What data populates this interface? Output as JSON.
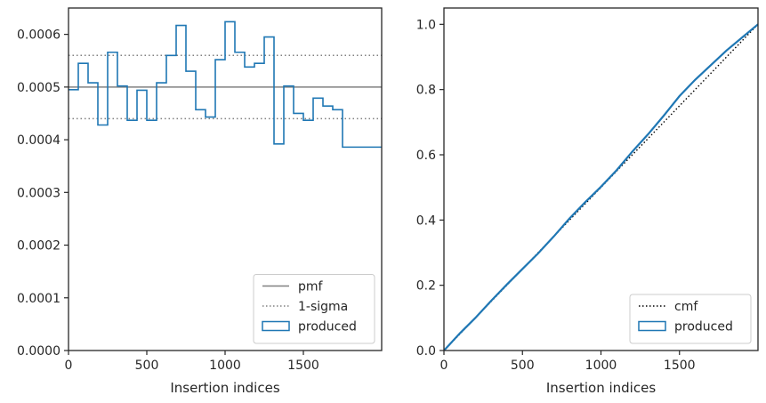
{
  "chart_data": [
    {
      "type": "line",
      "xlabel": "Insertion indices",
      "ylabel": "",
      "xlim": [
        0,
        2000
      ],
      "ylim": [
        0,
        0.00065
      ],
      "x_ticks": [
        {
          "value": 0,
          "label": "0"
        },
        {
          "value": 500,
          "label": "500"
        },
        {
          "value": 1000,
          "label": "1000"
        },
        {
          "value": 1500,
          "label": "1500"
        }
      ],
      "y_ticks": [
        {
          "value": 0,
          "label": "0.0000"
        },
        {
          "value": 0.0001,
          "label": "0.0001"
        },
        {
          "value": 0.0002,
          "label": "0.0002"
        },
        {
          "value": 0.0003,
          "label": "0.0003"
        },
        {
          "value": 0.0004,
          "label": "0.0004"
        },
        {
          "value": 0.0005,
          "label": "0.0005"
        },
        {
          "value": 0.0006,
          "label": "0.0006"
        }
      ],
      "pmf": 0.0005,
      "sigma_bounds": [
        0.00044,
        0.00056
      ],
      "histogram": {
        "name": "produced",
        "bin_edges": [
          0,
          62.5,
          125,
          187.5,
          250,
          312.5,
          375,
          437.5,
          500,
          562.5,
          625,
          687.5,
          750,
          812.5,
          875,
          937.5,
          1000,
          1062.5,
          1125,
          1187.5,
          1250,
          1312.5,
          1375,
          1437.5,
          1500,
          1562.5,
          1625,
          1687.5,
          1750,
          1812.5,
          1875,
          1937.5,
          2000
        ],
        "values": [
          0.000495,
          0.000545,
          0.000508,
          0.000428,
          0.000566,
          0.000502,
          0.000437,
          0.000494,
          0.000437,
          0.000508,
          0.00056,
          0.000617,
          0.00053,
          0.000457,
          0.000443,
          0.000552,
          0.000624,
          0.000566,
          0.000538,
          0.000545,
          0.000595,
          0.000392,
          0.000502,
          0.00045,
          0.000437,
          0.000479,
          0.000464,
          0.000457,
          0.000386,
          0.000386,
          0.000386,
          0.000386
        ]
      },
      "legend": {
        "position": "lower right",
        "entries": [
          {
            "label": "pmf",
            "style": "solid",
            "color": "#808080"
          },
          {
            "label": "1-sigma",
            "style": "dotted",
            "color": "#808080"
          },
          {
            "label": "produced",
            "style": "step",
            "color": "#1f77b4"
          }
        ]
      },
      "grid": false
    },
    {
      "type": "line",
      "xlabel": "Insertion indices",
      "ylabel": "",
      "xlim": [
        0,
        2000
      ],
      "ylim": [
        0,
        1.05
      ],
      "x_ticks": [
        {
          "value": 0,
          "label": "0"
        },
        {
          "value": 500,
          "label": "500"
        },
        {
          "value": 1000,
          "label": "1000"
        },
        {
          "value": 1500,
          "label": "1500"
        }
      ],
      "y_ticks": [
        {
          "value": 0,
          "label": "0.0"
        },
        {
          "value": 0.2,
          "label": "0.2"
        },
        {
          "value": 0.4,
          "label": "0.4"
        },
        {
          "value": 0.6,
          "label": "0.6"
        },
        {
          "value": 0.8,
          "label": "0.8"
        },
        {
          "value": 1.0,
          "label": "1.0"
        }
      ],
      "series": [
        {
          "name": "cmf",
          "style": "dotted",
          "color": "#000000",
          "x": [
            0,
            2000
          ],
          "y": [
            0,
            1.0
          ]
        },
        {
          "name": "produced",
          "style": "solid",
          "color": "#1f77b4",
          "x": [
            0,
            100,
            200,
            300,
            400,
            500,
            600,
            700,
            800,
            900,
            1000,
            1100,
            1200,
            1300,
            1400,
            1500,
            1600,
            1700,
            1800,
            1900,
            2000
          ],
          "y": [
            0,
            0.052,
            0.1,
            0.152,
            0.202,
            0.25,
            0.298,
            0.35,
            0.405,
            0.455,
            0.502,
            0.553,
            0.61,
            0.663,
            0.72,
            0.78,
            0.83,
            0.875,
            0.92,
            0.96,
            1.0
          ]
        }
      ],
      "legend": {
        "position": "lower right",
        "entries": [
          {
            "label": "cmf",
            "style": "dotted",
            "color": "#000000"
          },
          {
            "label": "produced",
            "style": "step",
            "color": "#1f77b4"
          }
        ]
      },
      "grid": false
    }
  ]
}
